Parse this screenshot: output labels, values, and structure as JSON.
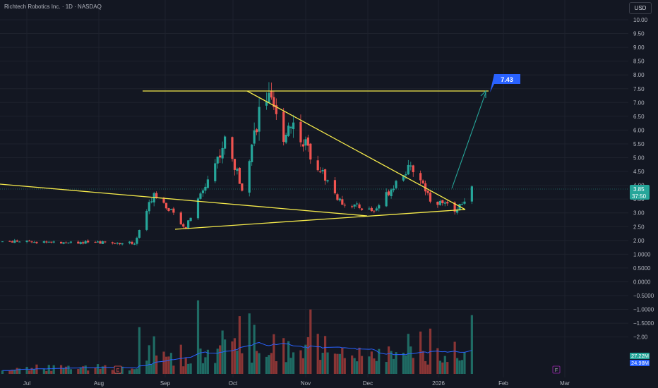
{
  "header": {
    "title": "Richtech Robotics Inc. · 1D · NASDAQ"
  },
  "currency_button": "USD",
  "colors": {
    "background": "#131722",
    "up": "#26a69a",
    "down": "#ef5350",
    "trendline": "#f5ea4b",
    "target_label": "#2962ff",
    "volume_ma": "#2962ff",
    "axis_text": "#b2b5be"
  },
  "annotations": {
    "target_label": "7.43",
    "earnings_marker": "E",
    "future_marker": "F"
  },
  "price_axis": {
    "ticks": [
      "10.00",
      "9.50",
      "9.00",
      "8.50",
      "8.00",
      "7.50",
      "7.00",
      "6.50",
      "6.00",
      "5.50",
      "5.00",
      "4.50",
      "4.00",
      "3.50",
      "3.00",
      "2.50",
      "2.00",
      "1.0000",
      "0.5000",
      "0.0000",
      "−0.5000",
      "−1.0000",
      "−1.5000",
      "−2.00"
    ],
    "last_price": "3.85",
    "countdown": "37:50",
    "volume_labels": [
      "27.22M",
      "24.98M"
    ]
  },
  "time_axis": {
    "ticks": [
      "Jul",
      "Aug",
      "Sep",
      "Oct",
      "Nov",
      "Dec",
      "2026",
      "Feb",
      "Mar"
    ]
  },
  "chart_data": {
    "type": "candlestick",
    "title": "Richtech Robotics Inc. · 1D · NASDAQ",
    "price_range": [
      2.0,
      10.0
    ],
    "last_price": 3.85,
    "target": 7.43,
    "x_range": [
      "2025-06-26",
      "2026-03-10"
    ],
    "key_swings": [
      {
        "date": "2025-06-27",
        "price": 1.95
      },
      {
        "date": "2025-08-20",
        "price": 1.9
      },
      {
        "date": "2025-08-28",
        "price": 3.75
      },
      {
        "date": "2025-09-10",
        "price": 2.45
      },
      {
        "date": "2025-09-26",
        "price": 5.6
      },
      {
        "date": "2025-10-03",
        "price": 3.95
      },
      {
        "date": "2025-10-12",
        "price": 7.4
      },
      {
        "date": "2025-10-20",
        "price": 5.8
      },
      {
        "date": "2025-10-23",
        "price": 6.35
      },
      {
        "date": "2025-11-12",
        "price": 3.4
      },
      {
        "date": "2025-11-26",
        "price": 3.05
      },
      {
        "date": "2025-12-08",
        "price": 4.5
      },
      {
        "date": "2025-12-13",
        "price": 4.6
      },
      {
        "date": "2025-12-19",
        "price": 3.5
      },
      {
        "date": "2025-12-30",
        "price": 3.1
      },
      {
        "date": "2026-01-05",
        "price": 3.85
      }
    ],
    "trendlines": [
      {
        "name": "resistance",
        "start": {
          "date": "2025-10-12",
          "price": 7.43
        },
        "end": {
          "date": "2026-01-07",
          "price": 3.15
        }
      },
      {
        "name": "support",
        "start": {
          "date": "2025-09-10",
          "price": 2.45
        },
        "end": {
          "date": "2026-01-07",
          "price": 3.15
        }
      },
      {
        "name": "long-term",
        "start": {
          "date": "2025-05-10",
          "price": 4.0
        },
        "end": {
          "date": "2025-12-05",
          "price": 2.9
        }
      },
      {
        "name": "top",
        "start": {
          "date": "2025-09-01",
          "price": 7.43
        },
        "end": {
          "date": "2026-01-27",
          "price": 7.43
        }
      }
    ],
    "projection": {
      "start": {
        "date": "2026-01-06",
        "price": 3.95
      },
      "end": {
        "date": "2026-01-27",
        "price": 7.4
      }
    }
  }
}
